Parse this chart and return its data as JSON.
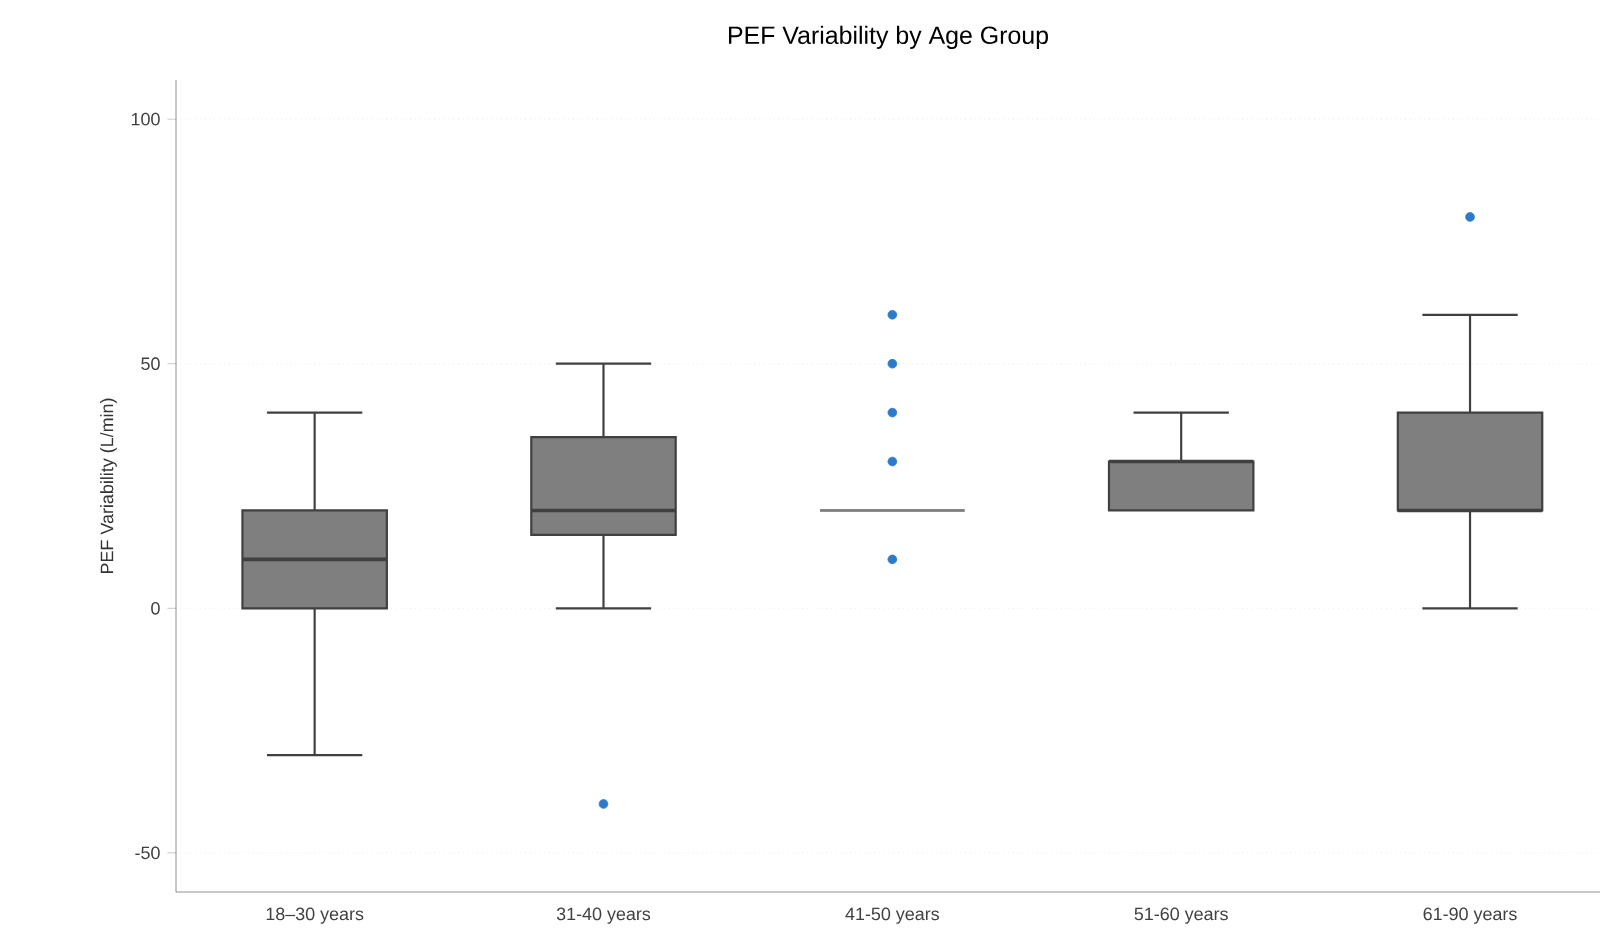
{
  "chart_data": {
    "type": "box",
    "title": "PEF Variability by Age Group",
    "ylabel": "PEF Variability (L/min)",
    "categories": [
      "18–30 years",
      "31-40 years",
      "41-50 years",
      "51-60 years",
      "61-90 years"
    ],
    "color": "#7f7f7f",
    "boxes": [
      {
        "low": -30,
        "q1": 0,
        "median": 10,
        "q3": 20,
        "high": 40
      },
      {
        "low": 0,
        "q1": 15,
        "median": 20,
        "q3": 35,
        "high": 50,
        "outliers": [
          -40
        ]
      },
      {
        "low": 20,
        "q1": 20,
        "median": 20,
        "q3": 20,
        "high": 20,
        "outliers": [
          60,
          50,
          40,
          30,
          10
        ]
      },
      {
        "low": 20,
        "q1": 20,
        "median": 30,
        "q3": 30,
        "high": 40
      },
      {
        "low": 0,
        "q1": 20,
        "median": 20,
        "q3": 40,
        "high": 60,
        "outliers": [
          80
        ]
      }
    ],
    "ylim": [
      -58,
      108
    ],
    "yticks": [
      -50,
      0,
      50,
      100
    ],
    "grid": "y"
  }
}
